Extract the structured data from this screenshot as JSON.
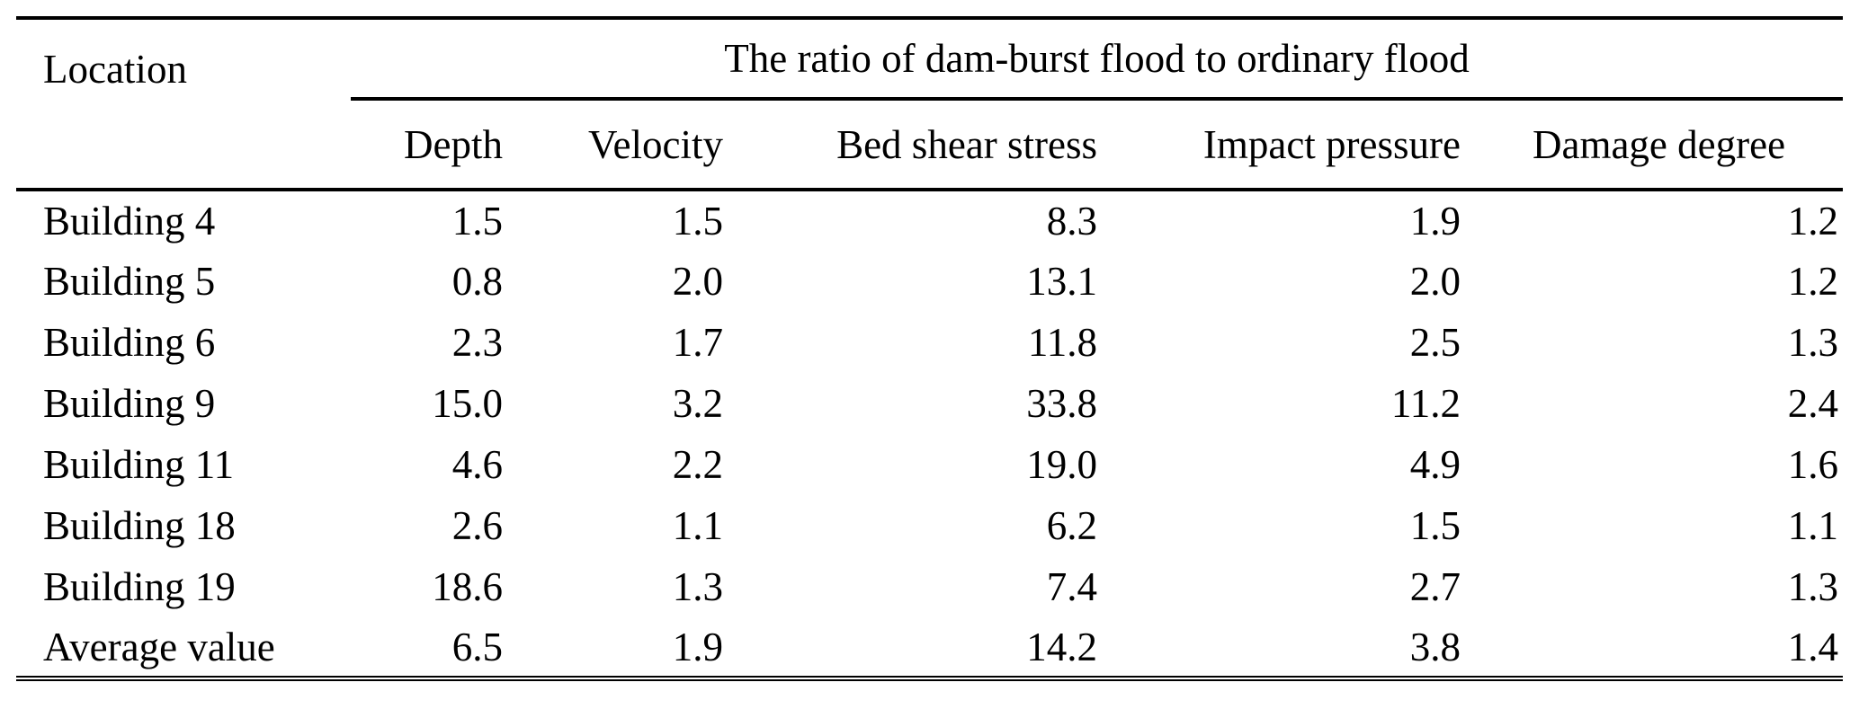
{
  "table": {
    "location_header": "Location",
    "span_header": "The ratio of dam-burst flood to ordinary flood",
    "columns": [
      "Depth",
      "Velocity",
      "Bed shear stress",
      "Impact pressure",
      "Damage degree"
    ],
    "rows": [
      {
        "location": "Building 4",
        "values": [
          "1.5",
          "1.5",
          "8.3",
          "1.9",
          "1.2"
        ]
      },
      {
        "location": "Building 5",
        "values": [
          "0.8",
          "2.0",
          "13.1",
          "2.0",
          "1.2"
        ]
      },
      {
        "location": "Building 6",
        "values": [
          "2.3",
          "1.7",
          "11.8",
          "2.5",
          "1.3"
        ]
      },
      {
        "location": "Building 9",
        "values": [
          "15.0",
          "3.2",
          "33.8",
          "11.2",
          "2.4"
        ]
      },
      {
        "location": "Building 11",
        "values": [
          "4.6",
          "2.2",
          "19.0",
          "4.9",
          "1.6"
        ]
      },
      {
        "location": "Building 18",
        "values": [
          "2.6",
          "1.1",
          "6.2",
          "1.5",
          "1.1"
        ]
      },
      {
        "location": "Building 19",
        "values": [
          "18.6",
          "1.3",
          "7.4",
          "2.7",
          "1.3"
        ]
      },
      {
        "location": "Average value",
        "values": [
          "6.5",
          "1.9",
          "14.2",
          "3.8",
          "1.4"
        ]
      }
    ]
  },
  "colors": {
    "background": "#ffffff",
    "text": "#000000",
    "rule": "#000000"
  },
  "chart_data": {
    "type": "table",
    "title": "The ratio of dam-burst flood to ordinary flood",
    "row_label_header": "Location",
    "categories": [
      "Building 4",
      "Building 5",
      "Building 6",
      "Building 9",
      "Building 11",
      "Building 18",
      "Building 19",
      "Average value"
    ],
    "series": [
      {
        "name": "Depth",
        "values": [
          1.5,
          0.8,
          2.3,
          15.0,
          4.6,
          2.6,
          18.6,
          6.5
        ]
      },
      {
        "name": "Velocity",
        "values": [
          1.5,
          2.0,
          1.7,
          3.2,
          2.2,
          1.1,
          1.3,
          1.9
        ]
      },
      {
        "name": "Bed shear stress",
        "values": [
          8.3,
          13.1,
          11.8,
          33.8,
          19.0,
          6.2,
          7.4,
          14.2
        ]
      },
      {
        "name": "Impact pressure",
        "values": [
          1.9,
          2.0,
          2.5,
          11.2,
          4.9,
          1.5,
          2.7,
          3.8
        ]
      },
      {
        "name": "Damage degree",
        "values": [
          1.2,
          1.2,
          1.3,
          2.4,
          1.6,
          1.1,
          1.3,
          1.4
        ]
      }
    ]
  }
}
